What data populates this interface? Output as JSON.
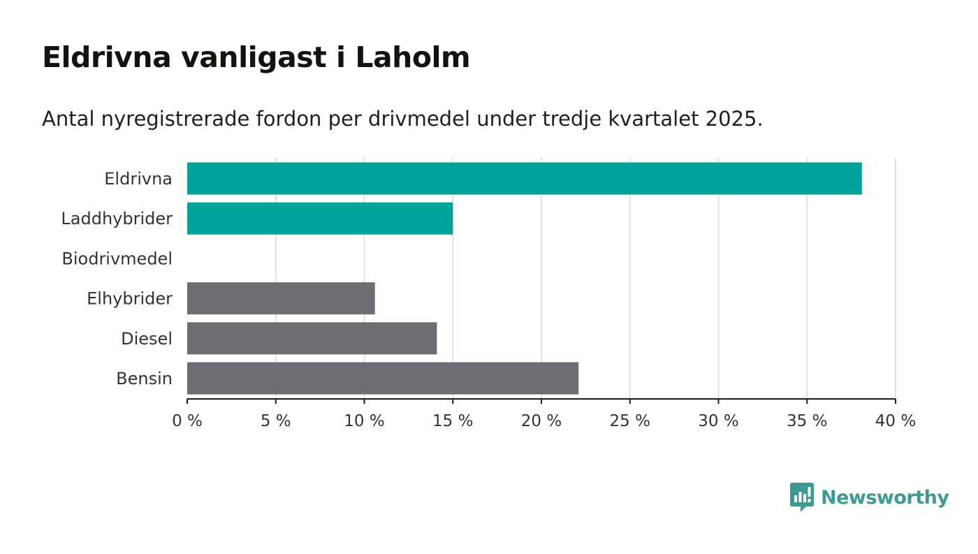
{
  "header": {
    "title": "Eldrivna vanligast i Laholm",
    "subtitle": "Antal nyregistrerade fordon per drivmedel under tredje kvartalet 2025."
  },
  "brand": {
    "name": "Newsworthy",
    "icon": "newsworthy-bar-chart-icon",
    "color": "#3e9993"
  },
  "chart_data": {
    "type": "bar",
    "orientation": "horizontal",
    "title": "Eldrivna vanligast i Laholm",
    "subtitle": "Antal nyregistrerade fordon per drivmedel under tredje kvartalet 2025.",
    "xlabel": "",
    "ylabel": "",
    "categories": [
      "Eldrivna",
      "Laddhybrider",
      "Biodrivmedel",
      "Elhybrider",
      "Diesel",
      "Bensin"
    ],
    "values": [
      38.1,
      15.0,
      0,
      10.6,
      14.1,
      22.1
    ],
    "colors": [
      "#00a39a",
      "#00a39a",
      "#00a39a",
      "#6e6d73",
      "#6e6d73",
      "#6e6d73"
    ],
    "xlim": [
      0,
      40
    ],
    "ticks": [
      0,
      5,
      10,
      15,
      20,
      25,
      30,
      35,
      40
    ],
    "tick_labels": [
      "0 %",
      "5 %",
      "10 %",
      "15 %",
      "20 %",
      "25 %",
      "30 %",
      "35 %",
      "40 %"
    ],
    "grid": true,
    "legend": "none"
  }
}
